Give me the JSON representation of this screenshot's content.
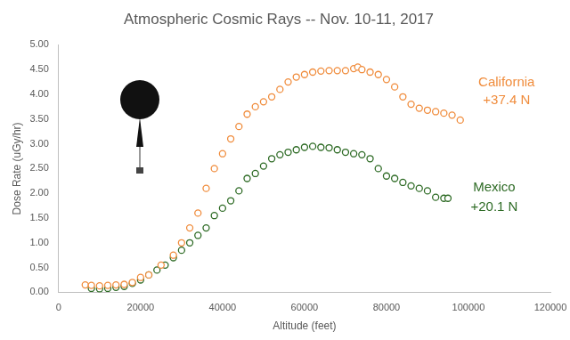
{
  "chart_data": {
    "type": "scatter",
    "title": "Atmospheric Cosmic Rays -- Nov. 10-11, 2017",
    "x_label": "Altitude (feet)",
    "y_label": "Dose Rate (uGy/hr)",
    "xlim": [
      0,
      120000
    ],
    "xticks": [
      0,
      20000,
      40000,
      60000,
      80000,
      100000,
      120000
    ],
    "ylim": [
      0,
      5
    ],
    "yticks": [
      {
        "value": 0,
        "label": "0.00"
      },
      {
        "value": 0.5,
        "label": "0.50"
      },
      {
        "value": 1,
        "label": "1.00"
      },
      {
        "value": 1.5,
        "label": "1.50"
      },
      {
        "value": 2,
        "label": "2.00"
      },
      {
        "value": 2.5,
        "label": "2.50"
      },
      {
        "value": 3,
        "label": "3.00"
      },
      {
        "value": 3.5,
        "label": "3.50"
      },
      {
        "value": 4,
        "label": "4.00"
      },
      {
        "value": 4.5,
        "label": "4.50"
      },
      {
        "value": 5,
        "label": "5.00"
      }
    ],
    "grid": false,
    "marker": "circle",
    "series": [
      {
        "name": "California",
        "latitude": "+37.4 N",
        "color": "#f08c3c",
        "x": [
          6500,
          8000,
          10000,
          12000,
          14000,
          16000,
          18000,
          20000,
          22000,
          25000,
          28000,
          30000,
          32000,
          34000,
          36000,
          38000,
          40000,
          42000,
          44000,
          46000,
          48000,
          50000,
          52000,
          54000,
          56000,
          58000,
          60000,
          62000,
          64000,
          66000,
          68000,
          70000,
          72000,
          73000,
          74000,
          76000,
          78000,
          80000,
          82000,
          84000,
          86000,
          88000,
          90000,
          92000,
          94000,
          96000,
          98000
        ],
        "values": [
          0.15,
          0.14,
          0.13,
          0.14,
          0.15,
          0.16,
          0.2,
          0.3,
          0.35,
          0.55,
          0.75,
          1.0,
          1.3,
          1.6,
          2.1,
          2.5,
          2.8,
          3.1,
          3.35,
          3.6,
          3.75,
          3.85,
          3.95,
          4.1,
          4.25,
          4.35,
          4.4,
          4.45,
          4.47,
          4.48,
          4.48,
          4.48,
          4.52,
          4.55,
          4.5,
          4.45,
          4.4,
          4.3,
          4.15,
          3.95,
          3.8,
          3.72,
          3.68,
          3.65,
          3.62,
          3.58,
          3.48
        ]
      },
      {
        "name": "Mexico",
        "latitude": "+20.1 N",
        "color": "#2e6b25",
        "x": [
          8000,
          10000,
          12000,
          14000,
          16000,
          18000,
          20000,
          22000,
          24000,
          26000,
          28000,
          30000,
          32000,
          34000,
          36000,
          38000,
          40000,
          42000,
          44000,
          46000,
          48000,
          50000,
          52000,
          54000,
          56000,
          58000,
          60000,
          62000,
          64000,
          66000,
          68000,
          70000,
          72000,
          74000,
          76000,
          78000,
          80000,
          82000,
          84000,
          86000,
          88000,
          90000,
          92000,
          94000,
          95000
        ],
        "values": [
          0.08,
          0.07,
          0.08,
          0.1,
          0.12,
          0.18,
          0.25,
          0.35,
          0.45,
          0.55,
          0.7,
          0.85,
          1.0,
          1.15,
          1.3,
          1.55,
          1.7,
          1.85,
          2.05,
          2.3,
          2.4,
          2.55,
          2.7,
          2.78,
          2.83,
          2.88,
          2.93,
          2.95,
          2.93,
          2.92,
          2.88,
          2.83,
          2.8,
          2.78,
          2.7,
          2.5,
          2.35,
          2.3,
          2.22,
          2.15,
          2.1,
          2.05,
          1.92,
          1.9,
          1.9
        ]
      }
    ]
  }
}
